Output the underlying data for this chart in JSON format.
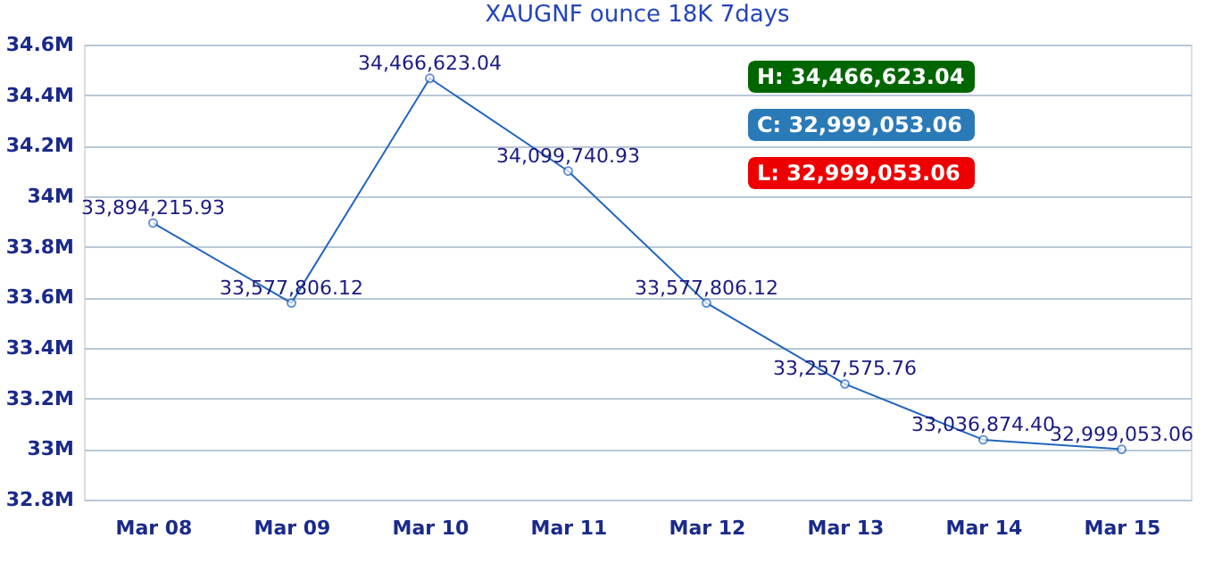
{
  "chart_data": {
    "type": "line",
    "title": "XAUGNF ounce 18K 7days",
    "categories": [
      "Mar 08",
      "Mar 09",
      "Mar 10",
      "Mar 11",
      "Mar 12",
      "Mar 13",
      "Mar 14",
      "Mar 15"
    ],
    "series": [
      {
        "color": "#2266bb",
        "values": [
          33894215.93,
          33577806.12,
          34466623.04,
          34099740.93,
          33577806.12,
          33257575.76,
          33036874.4,
          32999053.06
        ],
        "value_labels": [
          "33,894,215.93",
          "33,577,806.12",
          "34,466,623.04",
          "34,099,740.93",
          "33,577,806.12",
          "33,257,575.76",
          "33,036,874.40",
          "32,999,053.06"
        ]
      }
    ],
    "ylim": [
      32800000,
      34600000
    ],
    "yticks": [
      {
        "value": 32800000,
        "label": "32.8M"
      },
      {
        "value": 33000000,
        "label": "33M"
      },
      {
        "value": 33200000,
        "label": "33.2M"
      },
      {
        "value": 33400000,
        "label": "33.4M"
      },
      {
        "value": 33600000,
        "label": "33.6M"
      },
      {
        "value": 33800000,
        "label": "33.8M"
      },
      {
        "value": 34000000,
        "label": "34M"
      },
      {
        "value": 34200000,
        "label": "34.2M"
      },
      {
        "value": 34400000,
        "label": "34.4M"
      },
      {
        "value": 34600000,
        "label": "34.6M"
      }
    ],
    "annotations": [
      "H: 34,466,623.04",
      "C: 32,999,053.06",
      "L: 32,999,053.06"
    ],
    "grid": "y",
    "marker": "circle",
    "line_style": "solid"
  }
}
